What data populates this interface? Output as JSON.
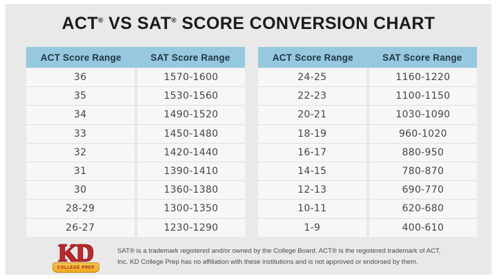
{
  "title": {
    "part1": "ACT",
    "reg1": "®",
    "part2": " VS SAT",
    "reg2": "®",
    "part3": " SCORE CONVERSION CHART"
  },
  "tables": {
    "headers": {
      "act": "ACT Score Range",
      "sat": "SAT Score Range"
    },
    "left": {
      "rows": [
        [
          "36",
          "1570-1600"
        ],
        [
          "35",
          "1530-1560"
        ],
        [
          "34",
          "1490-1520"
        ],
        [
          "33",
          "1450-1480"
        ],
        [
          "32",
          "1420-1440"
        ],
        [
          "31",
          "1390-1410"
        ],
        [
          "30",
          "1360-1380"
        ],
        [
          "28-29",
          "1300-1350"
        ],
        [
          "26-27",
          "1230-1290"
        ]
      ]
    },
    "right": {
      "rows": [
        [
          "24-25",
          "1160-1220"
        ],
        [
          "22-23",
          "1100-1150"
        ],
        [
          "20-21",
          "1030-1090"
        ],
        [
          "18-19",
          "960-1020"
        ],
        [
          "16-17",
          "880-950"
        ],
        [
          "14-15",
          "780-870"
        ],
        [
          "12-13",
          "690-770"
        ],
        [
          "10-11",
          "620-680"
        ],
        [
          "1-9",
          "400-610"
        ]
      ]
    }
  },
  "chart_data": {
    "type": "table",
    "title": "ACT® VS SAT® SCORE CONVERSION CHART",
    "columns": [
      "ACT Score Range",
      "SAT Score Range"
    ],
    "rows": [
      [
        "36",
        "1570-1600"
      ],
      [
        "35",
        "1530-1560"
      ],
      [
        "34",
        "1490-1520"
      ],
      [
        "33",
        "1450-1480"
      ],
      [
        "32",
        "1420-1440"
      ],
      [
        "31",
        "1390-1410"
      ],
      [
        "30",
        "1360-1380"
      ],
      [
        "28-29",
        "1300-1350"
      ],
      [
        "26-27",
        "1230-1290"
      ],
      [
        "24-25",
        "1160-1220"
      ],
      [
        "22-23",
        "1100-1150"
      ],
      [
        "20-21",
        "1030-1090"
      ],
      [
        "18-19",
        "960-1020"
      ],
      [
        "16-17",
        "880-950"
      ],
      [
        "14-15",
        "780-870"
      ],
      [
        "12-13",
        "690-770"
      ],
      [
        "10-11",
        "620-680"
      ],
      [
        "1-9",
        "400-610"
      ]
    ],
    "layout": {
      "panels": 2,
      "rows_per_panel": 9,
      "grid": "horizontal row dividers",
      "header_background": "#96c8e0"
    }
  },
  "footer": {
    "logo": {
      "kd": "KD",
      "subtext": "COLLEGE PREP"
    },
    "disclaimer_line1": "SAT® is a trademark registered and/or owned by the College Board. ACT® is the registered trademark of ACT,",
    "disclaimer_line2": "Inc. KD College Prep has no affiliation with these institutions and is not approved or endorsed by them."
  },
  "colors": {
    "page_margin": "#ffffff",
    "canvas_background": "#e9e9e9",
    "header_background": "#96c8e0",
    "header_text": "#203442",
    "row_background": "#f7f7f6",
    "row_divider": "#e0e0e0",
    "column_divider": "#e6e7e7",
    "cell_text": "#414549",
    "title_text": "#1b1b1b",
    "logo_red": "#bf272b",
    "logo_gold": "#f2b32a",
    "disclaimer_text": "#4a4a4a"
  }
}
